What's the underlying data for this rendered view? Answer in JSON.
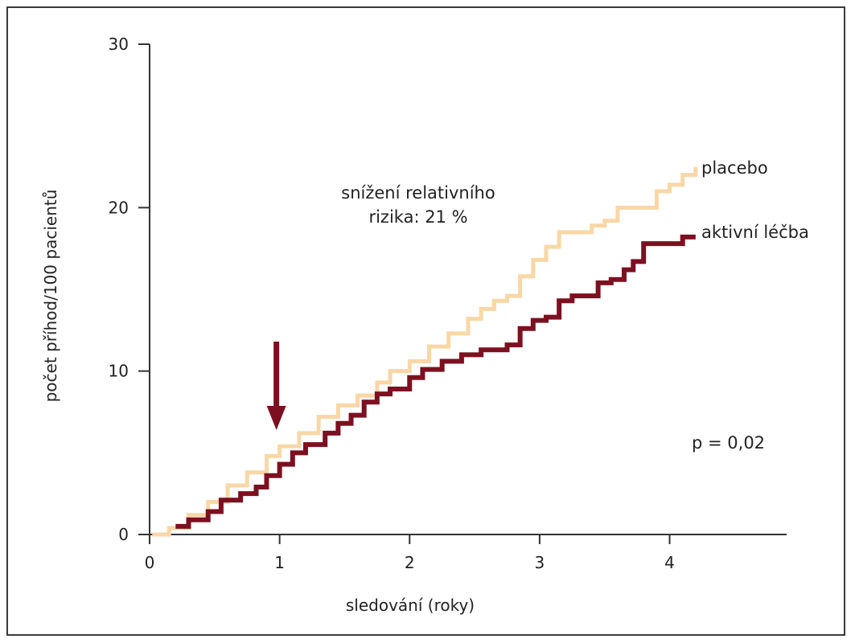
{
  "chart_data": {
    "type": "line",
    "xlabel": "sledování (roky)",
    "ylabel": "počet příhod/100 pacientů",
    "xlim": [
      0,
      4.9
    ],
    "ylim": [
      0,
      30
    ],
    "x_ticks": [
      0,
      1,
      2,
      3,
      4
    ],
    "y_ticks": [
      0,
      10,
      20,
      30
    ],
    "series": [
      {
        "name": "placebo",
        "color": "#f9d7a6",
        "points": [
          [
            0.02,
            0.0
          ],
          [
            0.15,
            0.4
          ],
          [
            0.3,
            1.2
          ],
          [
            0.45,
            2.0
          ],
          [
            0.6,
            3.0
          ],
          [
            0.75,
            3.8
          ],
          [
            0.9,
            4.8
          ],
          [
            1.0,
            5.4
          ],
          [
            1.15,
            6.2
          ],
          [
            1.3,
            7.2
          ],
          [
            1.45,
            7.9
          ],
          [
            1.6,
            8.5
          ],
          [
            1.75,
            9.3
          ],
          [
            1.85,
            10.0
          ],
          [
            2.0,
            10.6
          ],
          [
            2.15,
            11.5
          ],
          [
            2.3,
            12.3
          ],
          [
            2.45,
            13.2
          ],
          [
            2.55,
            13.8
          ],
          [
            2.65,
            14.3
          ],
          [
            2.75,
            14.6
          ],
          [
            2.85,
            15.8
          ],
          [
            2.95,
            16.8
          ],
          [
            3.05,
            17.6
          ],
          [
            3.15,
            18.5
          ],
          [
            3.3,
            18.5
          ],
          [
            3.4,
            18.9
          ],
          [
            3.5,
            19.2
          ],
          [
            3.6,
            20.0
          ],
          [
            3.8,
            20.0
          ],
          [
            3.9,
            21.0
          ],
          [
            4.0,
            21.4
          ],
          [
            4.1,
            22.0
          ],
          [
            4.2,
            22.5
          ]
        ]
      },
      {
        "name": "aktivní léčba",
        "color": "#7d1020",
        "points": [
          [
            0.2,
            0.5
          ],
          [
            0.3,
            0.9
          ],
          [
            0.45,
            1.4
          ],
          [
            0.55,
            2.1
          ],
          [
            0.7,
            2.5
          ],
          [
            0.82,
            2.9
          ],
          [
            0.9,
            3.6
          ],
          [
            1.0,
            4.3
          ],
          [
            1.1,
            5.0
          ],
          [
            1.2,
            5.5
          ],
          [
            1.35,
            6.2
          ],
          [
            1.45,
            6.8
          ],
          [
            1.55,
            7.3
          ],
          [
            1.65,
            8.1
          ],
          [
            1.75,
            8.6
          ],
          [
            1.85,
            8.9
          ],
          [
            2.0,
            9.6
          ],
          [
            2.1,
            10.1
          ],
          [
            2.25,
            10.6
          ],
          [
            2.4,
            11.0
          ],
          [
            2.55,
            11.3
          ],
          [
            2.65,
            11.3
          ],
          [
            2.75,
            11.6
          ],
          [
            2.85,
            12.6
          ],
          [
            2.95,
            13.1
          ],
          [
            3.05,
            13.3
          ],
          [
            3.15,
            14.3
          ],
          [
            3.25,
            14.6
          ],
          [
            3.35,
            14.6
          ],
          [
            3.45,
            15.4
          ],
          [
            3.55,
            15.6
          ],
          [
            3.65,
            16.2
          ],
          [
            3.72,
            16.7
          ],
          [
            3.8,
            17.8
          ],
          [
            4.05,
            17.8
          ],
          [
            4.1,
            18.2
          ],
          [
            4.2,
            18.2
          ]
        ]
      }
    ],
    "annotations": {
      "reduction_line1": "snížení relativního",
      "reduction_line2": "rizika: 21 %",
      "p_value": "p = 0,02",
      "arrow_x": 1.0,
      "arrow_color": "#7d1020"
    }
  }
}
